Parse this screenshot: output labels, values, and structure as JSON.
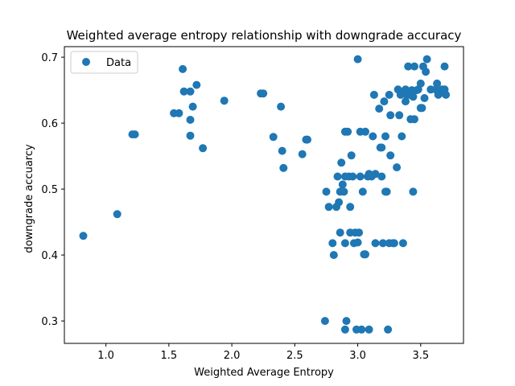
{
  "chart_data": {
    "type": "scatter",
    "title": "Weighted average entropy relationship with downgrade accuracy",
    "xlabel": "Weighted Average Entropy",
    "ylabel": "downgrade accuarcy",
    "xlim": [
      0.67,
      3.84
    ],
    "ylim": [
      0.266,
      0.716
    ],
    "xticks": [
      1.0,
      1.5,
      2.0,
      2.5,
      3.0,
      3.5
    ],
    "xtick_labels": [
      "1.0",
      "1.5",
      "2.0",
      "2.5",
      "3.0",
      "3.5"
    ],
    "yticks": [
      0.3,
      0.4,
      0.5,
      0.6,
      0.7
    ],
    "ytick_labels": [
      "0.3",
      "0.4",
      "0.5",
      "0.6",
      "0.7"
    ],
    "grid": false,
    "legend": {
      "position": "upper-left"
    },
    "series": [
      {
        "name": "Data",
        "color": "#1f77b4",
        "points": [
          [
            0.82,
            0.429
          ],
          [
            1.09,
            0.462
          ],
          [
            1.21,
            0.583
          ],
          [
            1.23,
            0.583
          ],
          [
            1.54,
            0.615
          ],
          [
            1.58,
            0.615
          ],
          [
            1.61,
            0.682
          ],
          [
            1.62,
            0.648
          ],
          [
            1.67,
            0.648
          ],
          [
            1.69,
            0.625
          ],
          [
            1.67,
            0.605
          ],
          [
            1.67,
            0.581
          ],
          [
            1.72,
            0.658
          ],
          [
            1.77,
            0.562
          ],
          [
            1.94,
            0.634
          ],
          [
            2.23,
            0.645
          ],
          [
            2.25,
            0.645
          ],
          [
            2.33,
            0.579
          ],
          [
            2.39,
            0.625
          ],
          [
            2.4,
            0.558
          ],
          [
            2.41,
            0.532
          ],
          [
            2.56,
            0.553
          ],
          [
            2.59,
            0.575
          ],
          [
            2.6,
            0.575
          ],
          [
            2.74,
            0.3
          ],
          [
            2.75,
            0.496
          ],
          [
            2.77,
            0.473
          ],
          [
            2.8,
            0.418
          ],
          [
            2.81,
            0.4
          ],
          [
            2.83,
            0.473
          ],
          [
            2.84,
            0.519
          ],
          [
            2.85,
            0.48
          ],
          [
            2.86,
            0.496
          ],
          [
            2.86,
            0.434
          ],
          [
            2.87,
            0.54
          ],
          [
            2.88,
            0.507
          ],
          [
            2.89,
            0.496
          ],
          [
            2.9,
            0.519
          ],
          [
            2.9,
            0.587
          ],
          [
            2.9,
            0.418
          ],
          [
            2.9,
            0.287
          ],
          [
            2.91,
            0.3
          ],
          [
            2.92,
            0.587
          ],
          [
            2.93,
            0.519
          ],
          [
            2.94,
            0.434
          ],
          [
            2.94,
            0.473
          ],
          [
            2.95,
            0.551
          ],
          [
            2.96,
            0.519
          ],
          [
            2.97,
            0.418
          ],
          [
            2.98,
            0.434
          ],
          [
            2.99,
            0.287
          ],
          [
            3.0,
            0.697
          ],
          [
            3.0,
            0.419
          ],
          [
            3.01,
            0.434
          ],
          [
            3.02,
            0.587
          ],
          [
            3.02,
            0.519
          ],
          [
            3.03,
            0.287
          ],
          [
            3.04,
            0.496
          ],
          [
            3.05,
            0.401
          ],
          [
            3.06,
            0.401
          ],
          [
            3.06,
            0.587
          ],
          [
            3.08,
            0.519
          ],
          [
            3.09,
            0.287
          ],
          [
            3.09,
            0.523
          ],
          [
            3.11,
            0.519
          ],
          [
            3.12,
            0.58
          ],
          [
            3.13,
            0.643
          ],
          [
            3.14,
            0.523
          ],
          [
            3.14,
            0.418
          ],
          [
            3.17,
            0.622
          ],
          [
            3.18,
            0.563
          ],
          [
            3.19,
            0.563
          ],
          [
            3.19,
            0.519
          ],
          [
            3.2,
            0.418
          ],
          [
            3.21,
            0.633
          ],
          [
            3.22,
            0.58
          ],
          [
            3.22,
            0.496
          ],
          [
            3.23,
            0.496
          ],
          [
            3.24,
            0.287
          ],
          [
            3.25,
            0.643
          ],
          [
            3.25,
            0.418
          ],
          [
            3.26,
            0.612
          ],
          [
            3.26,
            0.551
          ],
          [
            3.28,
            0.418
          ],
          [
            3.29,
            0.418
          ],
          [
            3.31,
            0.533
          ],
          [
            3.32,
            0.651
          ],
          [
            3.33,
            0.612
          ],
          [
            3.34,
            0.643
          ],
          [
            3.35,
            0.58
          ],
          [
            3.36,
            0.418
          ],
          [
            3.38,
            0.651
          ],
          [
            3.38,
            0.633
          ],
          [
            3.39,
            0.643
          ],
          [
            3.4,
            0.686
          ],
          [
            3.41,
            0.643
          ],
          [
            3.42,
            0.606
          ],
          [
            3.43,
            0.65
          ],
          [
            3.44,
            0.64
          ],
          [
            3.44,
            0.496
          ],
          [
            3.45,
            0.606
          ],
          [
            3.45,
            0.686
          ],
          [
            3.47,
            0.65
          ],
          [
            3.48,
            0.651
          ],
          [
            3.5,
            0.66
          ],
          [
            3.5,
            0.623
          ],
          [
            3.51,
            0.623
          ],
          [
            3.52,
            0.686
          ],
          [
            3.53,
            0.638
          ],
          [
            3.54,
            0.678
          ],
          [
            3.55,
            0.697
          ],
          [
            3.58,
            0.651
          ],
          [
            3.62,
            0.651
          ],
          [
            3.63,
            0.66
          ],
          [
            3.64,
            0.643
          ],
          [
            3.67,
            0.651
          ],
          [
            3.69,
            0.651
          ],
          [
            3.69,
            0.686
          ],
          [
            3.7,
            0.643
          ]
        ]
      }
    ]
  }
}
